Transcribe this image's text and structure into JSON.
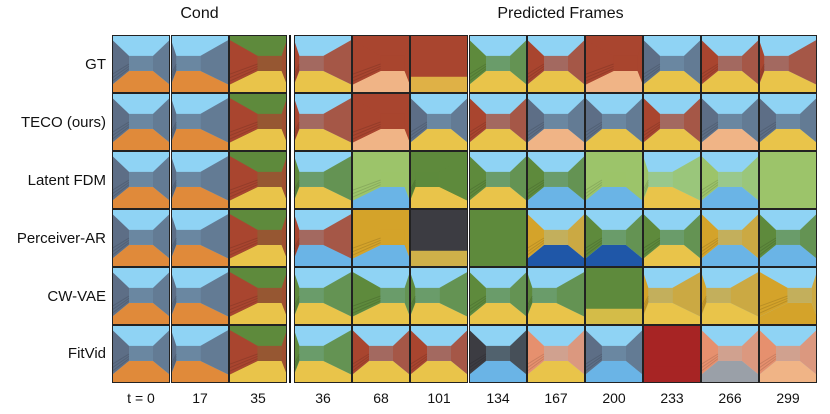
{
  "headers": {
    "cond": "Cond",
    "predicted": "Predicted Frames"
  },
  "methods": [
    "GT",
    "TECO (ours)",
    "Latent FDM",
    "Perceiver-AR",
    "CW-VAE",
    "FitVid"
  ],
  "timesteps": [
    "t = 0",
    "17",
    "35",
    "36",
    "68",
    "101",
    "134",
    "167",
    "200",
    "233",
    "266",
    "299"
  ],
  "colors": {
    "sky": "#8fd3f4",
    "floor_orange": "#e08a3a",
    "floor_peach": "#f0b486",
    "floor_yellow": "#e9c44a",
    "floor_blue": "#6ab4e6",
    "wall_gray": "#5d6e86",
    "wall_red": "#a9452f",
    "wall_green": "#5e8a3c",
    "wall_lightgreen": "#9cc46a",
    "wall_gold": "#d4a32a",
    "wall_salmon": "#e6906e",
    "wall_dark": "#3c3c42",
    "wall_crimson": "#a72424",
    "floor_gray": "#9aa0a8",
    "floor_darkblue": "#1f57a8"
  },
  "frames": [
    [
      [
        "sky",
        "wall_gray",
        "floor_orange",
        "c"
      ],
      [
        "sky",
        "wall_gray",
        "floor_orange",
        "L"
      ],
      [
        "wall_green",
        "wall_red",
        "floor_yellow",
        "R"
      ],
      [
        "sky",
        "wall_red",
        "floor_yellow",
        "L"
      ],
      [
        "wall_red",
        "wall_red",
        "floor_peach",
        "R"
      ],
      [
        "wall_red",
        "wall_red",
        "floor_yellow",
        "F"
      ],
      [
        "sky",
        "wall_green",
        "floor_yellow",
        "c"
      ],
      [
        "sky",
        "wall_red",
        "floor_yellow",
        "c"
      ],
      [
        "wall_red",
        "wall_red",
        "floor_peach",
        "R"
      ],
      [
        "sky",
        "wall_gray",
        "floor_yellow",
        "c"
      ],
      [
        "sky",
        "wall_red",
        "floor_yellow",
        "c"
      ],
      [
        "sky",
        "wall_red",
        "floor_yellow",
        "L"
      ]
    ],
    [
      [
        "sky",
        "wall_gray",
        "floor_orange",
        "c"
      ],
      [
        "sky",
        "wall_gray",
        "floor_orange",
        "L"
      ],
      [
        "wall_green",
        "wall_red",
        "floor_yellow",
        "R"
      ],
      [
        "sky",
        "wall_red",
        "floor_yellow",
        "L"
      ],
      [
        "wall_red",
        "wall_red",
        "floor_peach",
        "R"
      ],
      [
        "sky",
        "wall_gray",
        "floor_yellow",
        "c"
      ],
      [
        "sky",
        "wall_red",
        "floor_yellow",
        "c"
      ],
      [
        "sky",
        "wall_gray",
        "floor_peach",
        "c"
      ],
      [
        "sky",
        "wall_gray",
        "floor_yellow",
        "c"
      ],
      [
        "sky",
        "wall_red",
        "floor_yellow",
        "c"
      ],
      [
        "sky",
        "wall_gray",
        "floor_peach",
        "c"
      ],
      [
        "sky",
        "wall_gray",
        "floor_yellow",
        "c"
      ]
    ],
    [
      [
        "sky",
        "wall_gray",
        "floor_orange",
        "c"
      ],
      [
        "sky",
        "wall_gray",
        "floor_orange",
        "L"
      ],
      [
        "wall_green",
        "wall_red",
        "floor_yellow",
        "R"
      ],
      [
        "sky",
        "wall_green",
        "floor_yellow",
        "L"
      ],
      [
        "wall_lightgreen",
        "wall_lightgreen",
        "floor_blue",
        "R"
      ],
      [
        "wall_green",
        "wall_green",
        "floor_yellow",
        "L"
      ],
      [
        "sky",
        "wall_green",
        "floor_yellow",
        "c"
      ],
      [
        "sky",
        "wall_green",
        "floor_blue",
        "c"
      ],
      [
        "wall_lightgreen",
        "wall_lightgreen",
        "floor_blue",
        "c"
      ],
      [
        "sky",
        "wall_lightgreen",
        "floor_yellow",
        "L"
      ],
      [
        "sky",
        "wall_lightgreen",
        "floor_blue",
        "c"
      ],
      [
        "wall_lightgreen",
        "wall_lightgreen",
        "wall_lightgreen",
        "F"
      ]
    ],
    [
      [
        "sky",
        "wall_gray",
        "floor_orange",
        "c"
      ],
      [
        "sky",
        "wall_gray",
        "floor_orange",
        "L"
      ],
      [
        "wall_green",
        "wall_red",
        "floor_yellow",
        "R"
      ],
      [
        "sky",
        "wall_red",
        "floor_blue",
        "L"
      ],
      [
        "wall_gold",
        "wall_gold",
        "floor_blue",
        "R"
      ],
      [
        "wall_dark",
        "wall_dark",
        "floor_yellow",
        "F"
      ],
      [
        "wall_green",
        "wall_green",
        "wall_green",
        "F"
      ],
      [
        "sky",
        "wall_gold",
        "floor_darkblue",
        "c"
      ],
      [
        "sky",
        "wall_green",
        "floor_darkblue",
        "c"
      ],
      [
        "sky",
        "wall_green",
        "floor_yellow",
        "c"
      ],
      [
        "sky",
        "wall_gold",
        "floor_blue",
        "c"
      ],
      [
        "sky",
        "wall_green",
        "floor_blue",
        "c"
      ]
    ],
    [
      [
        "sky",
        "wall_gray",
        "floor_orange",
        "c"
      ],
      [
        "sky",
        "wall_gray",
        "floor_orange",
        "L"
      ],
      [
        "wall_green",
        "wall_red",
        "floor_yellow",
        "R"
      ],
      [
        "sky",
        "wall_green",
        "floor_yellow",
        "L"
      ],
      [
        "sky",
        "wall_green",
        "floor_yellow",
        "R"
      ],
      [
        "sky",
        "wall_green",
        "floor_yellow",
        "L"
      ],
      [
        "sky",
        "wall_green",
        "floor_yellow",
        "c"
      ],
      [
        "sky",
        "wall_green",
        "floor_yellow",
        "L"
      ],
      [
        "wall_green",
        "wall_green",
        "floor_yellow",
        "F"
      ],
      [
        "sky",
        "wall_gold",
        "floor_yellow",
        "L"
      ],
      [
        "sky",
        "wall_gold",
        "floor_yellow",
        "L"
      ],
      [
        "sky",
        "wall_gold",
        "wall_gold",
        "R"
      ]
    ],
    [
      [
        "sky",
        "wall_gray",
        "floor_orange",
        "c"
      ],
      [
        "sky",
        "wall_gray",
        "floor_orange",
        "L"
      ],
      [
        "wall_green",
        "wall_red",
        "floor_yellow",
        "R"
      ],
      [
        "sky",
        "wall_green",
        "floor_yellow",
        "L"
      ],
      [
        "sky",
        "wall_red",
        "floor_yellow",
        "c"
      ],
      [
        "sky",
        "wall_red",
        "floor_yellow",
        "c"
      ],
      [
        "sky",
        "wall_dark",
        "floor_blue",
        "c"
      ],
      [
        "sky",
        "wall_salmon",
        "floor_yellow",
        "c"
      ],
      [
        "sky",
        "wall_gray",
        "floor_blue",
        "c"
      ],
      [
        "wall_crimson",
        "wall_crimson",
        "wall_crimson",
        "F"
      ],
      [
        "sky",
        "wall_salmon",
        "floor_gray",
        "c"
      ],
      [
        "sky",
        "wall_salmon",
        "floor_peach",
        "c"
      ]
    ]
  ]
}
